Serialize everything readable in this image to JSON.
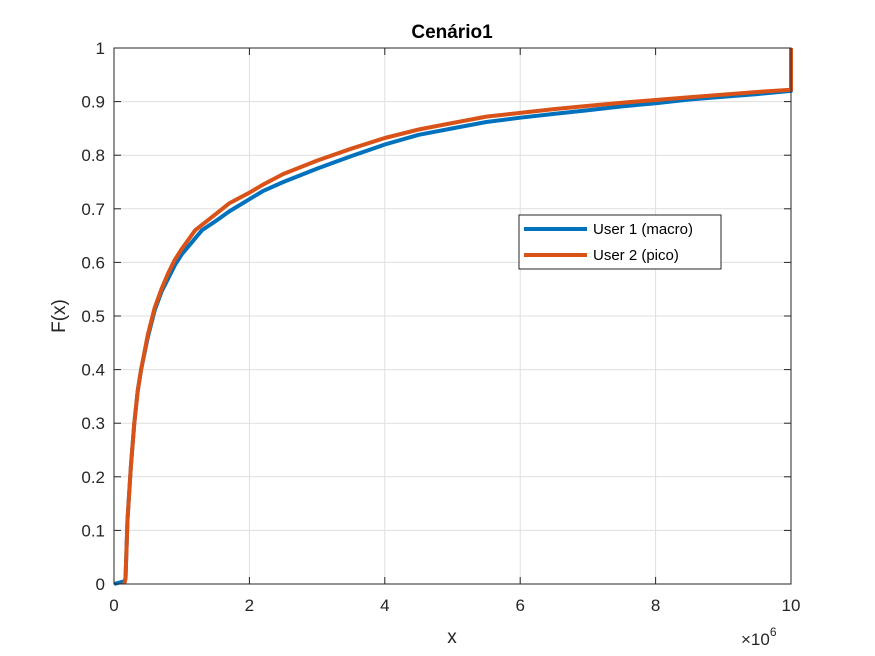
{
  "chart_data": {
    "type": "line",
    "title": "Cenário1",
    "xlabel": "x",
    "ylabel": "F(x)",
    "x_multiplier": "×10",
    "x_multiplier_exp": "6",
    "xlim": [
      0,
      10
    ],
    "ylim": [
      0,
      1
    ],
    "x_ticks": [
      "0",
      "2",
      "4",
      "6",
      "8",
      "10"
    ],
    "y_ticks": [
      "0",
      "0.1",
      "0.2",
      "0.3",
      "0.4",
      "0.5",
      "0.6",
      "0.7",
      "0.8",
      "0.9",
      "1"
    ],
    "grid": true,
    "legend_position": "center-right",
    "series": [
      {
        "name": "User 1 (macro)",
        "color": "#0072BD",
        "points": [
          [
            0,
            0
          ],
          [
            0.15,
            0.005
          ],
          [
            0.17,
            0.01
          ],
          [
            0.2,
            0.12
          ],
          [
            0.25,
            0.22
          ],
          [
            0.3,
            0.3
          ],
          [
            0.35,
            0.36
          ],
          [
            0.4,
            0.4
          ],
          [
            0.5,
            0.46
          ],
          [
            0.6,
            0.51
          ],
          [
            0.7,
            0.545
          ],
          [
            0.8,
            0.57
          ],
          [
            0.9,
            0.595
          ],
          [
            1.0,
            0.615
          ],
          [
            1.2,
            0.645
          ],
          [
            1.3,
            0.66
          ],
          [
            1.5,
            0.677
          ],
          [
            1.7,
            0.695
          ],
          [
            2.0,
            0.718
          ],
          [
            2.2,
            0.733
          ],
          [
            2.5,
            0.75
          ],
          [
            3.0,
            0.775
          ],
          [
            3.5,
            0.798
          ],
          [
            4.0,
            0.82
          ],
          [
            4.5,
            0.838
          ],
          [
            5.0,
            0.85
          ],
          [
            5.5,
            0.862
          ],
          [
            6.0,
            0.87
          ],
          [
            6.5,
            0.877
          ],
          [
            7.0,
            0.884
          ],
          [
            7.5,
            0.891
          ],
          [
            8.0,
            0.897
          ],
          [
            8.5,
            0.904
          ],
          [
            9.0,
            0.909
          ],
          [
            9.5,
            0.914
          ],
          [
            10.0,
            0.92
          ],
          [
            10.0,
            1.0
          ]
        ]
      },
      {
        "name": "User 2 (pico)",
        "color": "#D95319",
        "points": [
          [
            0.15,
            0
          ],
          [
            0.17,
            0.01
          ],
          [
            0.2,
            0.12
          ],
          [
            0.25,
            0.22
          ],
          [
            0.3,
            0.3
          ],
          [
            0.35,
            0.36
          ],
          [
            0.4,
            0.4
          ],
          [
            0.5,
            0.465
          ],
          [
            0.6,
            0.515
          ],
          [
            0.7,
            0.55
          ],
          [
            0.8,
            0.58
          ],
          [
            0.9,
            0.605
          ],
          [
            1.0,
            0.625
          ],
          [
            1.2,
            0.66
          ],
          [
            1.5,
            0.69
          ],
          [
            1.7,
            0.71
          ],
          [
            2.0,
            0.73
          ],
          [
            2.2,
            0.745
          ],
          [
            2.5,
            0.765
          ],
          [
            3.0,
            0.79
          ],
          [
            3.5,
            0.812
          ],
          [
            4.0,
            0.832
          ],
          [
            4.5,
            0.848
          ],
          [
            5.0,
            0.86
          ],
          [
            5.5,
            0.872
          ],
          [
            6.0,
            0.879
          ],
          [
            6.5,
            0.886
          ],
          [
            7.0,
            0.892
          ],
          [
            7.5,
            0.898
          ],
          [
            8.0,
            0.903
          ],
          [
            8.5,
            0.908
          ],
          [
            9.0,
            0.913
          ],
          [
            9.5,
            0.918
          ],
          [
            10.0,
            0.922
          ],
          [
            10.0,
            1.0
          ]
        ]
      }
    ]
  }
}
